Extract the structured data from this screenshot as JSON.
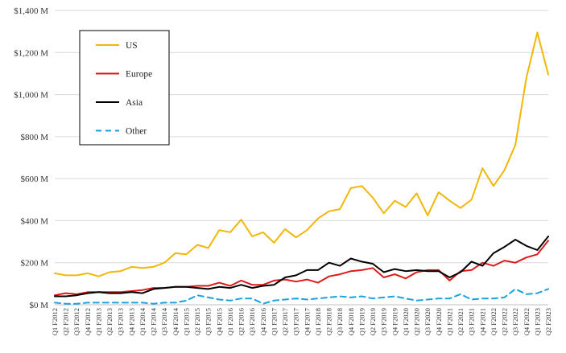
{
  "chart_data": {
    "type": "line",
    "title": "",
    "xlabel": "",
    "ylabel": "",
    "ylim": [
      0,
      1400
    ],
    "y_ticks": [
      0,
      200,
      400,
      600,
      800,
      1000,
      1200,
      1400
    ],
    "y_tick_labels": [
      "$0 M",
      "$200 M",
      "$400 M",
      "$600 M",
      "$800 M",
      "$1,000 M",
      "$1,200 M",
      "$1,400 M"
    ],
    "grid": "horizontal",
    "legend_position": "top-left",
    "categories": [
      "Q1 F2012",
      "Q2 F2012",
      "Q3 F2012",
      "Q4 F2012",
      "Q1 F2013",
      "Q2 F2013",
      "Q3 F2013",
      "Q4 F2013",
      "Q1 F2014",
      "Q2 F2014",
      "Q3 F2014",
      "Q4 F2014",
      "Q1 F2015",
      "Q2 F2015",
      "Q3 F2015",
      "Q4 F2015",
      "Q1 F2016",
      "Q2 F2016",
      "Q3 F2016",
      "Q4 F2016",
      "Q1 F2017",
      "Q2 F2017",
      "Q3 F2017",
      "Q4 F2017",
      "Q1 F2018",
      "Q2 F2018",
      "Q3 F2018",
      "Q4 F2018",
      "Q1 F2019",
      "Q2 F2019",
      "Q3 F2019",
      "Q4 F2019",
      "Q1 F2020",
      "Q2 F2020",
      "Q3 F2020",
      "Q4 F2020",
      "Q1 F2021",
      "Q2 F2021",
      "Q3 F2021",
      "Q4 F2021",
      "Q1 F2022",
      "Q2 F2022",
      "Q3 F2022",
      "Q4 F2022",
      "Q1 F2023",
      "Q2 F2023"
    ],
    "series": [
      {
        "name": "US",
        "color": "#f2b705",
        "dash": "solid",
        "values": [
          150,
          140,
          140,
          150,
          135,
          155,
          160,
          180,
          175,
          180,
          200,
          245,
          240,
          285,
          270,
          355,
          345,
          405,
          325,
          345,
          295,
          360,
          320,
          355,
          410,
          445,
          455,
          555,
          565,
          510,
          435,
          495,
          465,
          530,
          425,
          535,
          495,
          460,
          500,
          650,
          565,
          640,
          760,
          1080,
          1295,
          1095
        ]
      },
      {
        "name": "Europe",
        "color": "#dd1a1a",
        "dash": "solid",
        "values": [
          45,
          55,
          50,
          60,
          60,
          60,
          60,
          65,
          70,
          80,
          80,
          85,
          85,
          90,
          90,
          105,
          90,
          115,
          95,
          95,
          115,
          120,
          110,
          120,
          105,
          135,
          145,
          160,
          165,
          175,
          130,
          145,
          125,
          155,
          165,
          165,
          115,
          160,
          165,
          200,
          185,
          210,
          200,
          225,
          240,
          305
        ]
      },
      {
        "name": "Asia",
        "color": "#000000",
        "dash": "solid",
        "values": [
          40,
          40,
          45,
          55,
          60,
          55,
          55,
          60,
          55,
          75,
          80,
          85,
          85,
          80,
          75,
          85,
          80,
          95,
          80,
          90,
          95,
          130,
          140,
          165,
          165,
          200,
          185,
          220,
          205,
          195,
          155,
          170,
          160,
          165,
          160,
          160,
          130,
          155,
          205,
          185,
          245,
          275,
          310,
          280,
          260,
          325
        ]
      },
      {
        "name": "Other",
        "color": "#1aa3e0",
        "dash": "dashed",
        "values": [
          10,
          5,
          5,
          10,
          10,
          10,
          10,
          10,
          10,
          5,
          10,
          10,
          20,
          45,
          35,
          25,
          20,
          30,
          30,
          5,
          20,
          25,
          30,
          25,
          30,
          35,
          40,
          35,
          40,
          30,
          35,
          40,
          30,
          20,
          25,
          30,
          30,
          50,
          25,
          30,
          30,
          35,
          75,
          50,
          55,
          75
        ]
      }
    ]
  }
}
